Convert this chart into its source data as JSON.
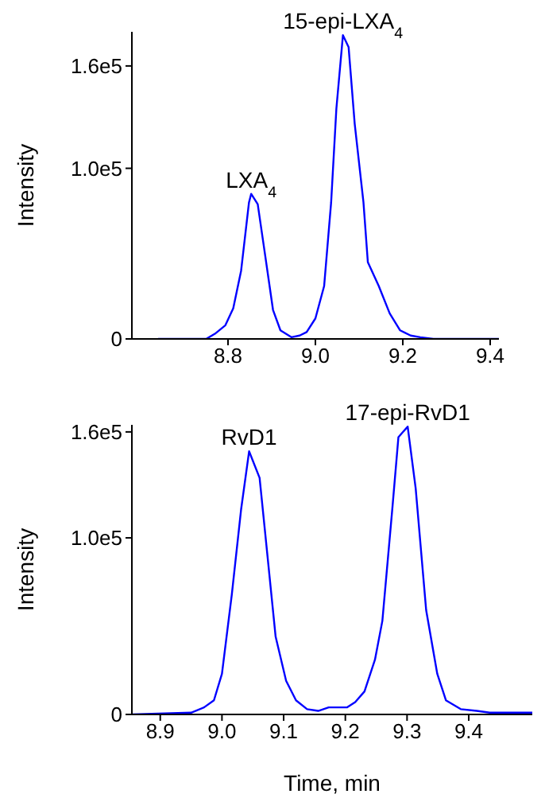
{
  "chart_data": [
    {
      "type": "line",
      "ylabel": "Intensity",
      "xlim": [
        8.58,
        9.42
      ],
      "ylim": [
        0,
        180000
      ],
      "xticks": [
        8.8,
        {
          "value": 9,
          "label": "9.0"
        },
        9.2,
        9.4
      ],
      "yticks": [
        {
          "value": 0,
          "label": "0"
        },
        {
          "value": 100000,
          "label": "1.0e5"
        },
        {
          "value": 160000,
          "label": "1.6e5"
        }
      ],
      "marker": "none",
      "line_style": "solid",
      "annotations": [
        {
          "text": "LXA$_{4}$",
          "x": 8.853,
          "y": 85000
        },
        {
          "text": "15-epi-LXA$_{4}$",
          "x": 9.063,
          "y": 178000
        }
      ],
      "series": [
        {
          "color": "#0000ff",
          "x": [
            8.64,
            8.75,
            8.77,
            8.794,
            8.812,
            8.83,
            8.848,
            8.853,
            8.868,
            8.885,
            8.903,
            8.92,
            8.945,
            8.964,
            8.98,
            9.0,
            9.02,
            9.036,
            9.048,
            9.063,
            9.076,
            9.09,
            9.11,
            9.12,
            9.145,
            9.17,
            9.194,
            9.218,
            9.24,
            9.27,
            9.42
          ],
          "values": [
            0,
            0,
            3000,
            8000,
            18000,
            40000,
            80000,
            85000,
            79000,
            49000,
            17000,
            5000,
            1000,
            2000,
            4000,
            12000,
            31000,
            80000,
            135000,
            178000,
            171000,
            126000,
            80000,
            45000,
            31000,
            15000,
            5000,
            2000,
            1000,
            0,
            0
          ]
        }
      ]
    },
    {
      "type": "line",
      "xlabel": "Time, min",
      "ylabel": "Intensity",
      "xlim": [
        8.854,
        9.503
      ],
      "ylim": [
        0,
        164000
      ],
      "xticks": [
        8.9,
        {
          "value": 9,
          "label": "9.0"
        },
        9.1,
        9.2,
        9.3,
        9.4
      ],
      "yticks": [
        {
          "value": 0,
          "label": "0"
        },
        {
          "value": 100000,
          "label": "1.0e5"
        },
        {
          "value": 160000,
          "label": "1.6e5"
        }
      ],
      "marker": "none",
      "line_style": "solid",
      "annotations": [
        {
          "text": "RvD1",
          "x": 9.044,
          "y": 149000
        },
        {
          "text": "17-epi-RvD1",
          "x": 9.301,
          "y": 163000
        }
      ],
      "series": [
        {
          "color": "#0000ff",
          "x": [
            8.854,
            8.95,
            8.971,
            8.987,
            9.0,
            9.016,
            9.031,
            9.044,
            9.061,
            9.074,
            9.087,
            9.104,
            9.12,
            9.138,
            9.156,
            9.173,
            9.203,
            9.216,
            9.231,
            9.248,
            9.26,
            9.276,
            9.286,
            9.301,
            9.314,
            9.331,
            9.349,
            9.363,
            9.387,
            9.413,
            9.434,
            9.503
          ],
          "values": [
            0,
            1000,
            4000,
            8000,
            23000,
            68000,
            116000,
            149000,
            134000,
            89000,
            44000,
            19000,
            8000,
            3000,
            2000,
            4000,
            4000,
            7000,
            13000,
            31000,
            53000,
            116000,
            157000,
            163000,
            128000,
            59000,
            23000,
            8000,
            3000,
            2000,
            1000,
            1000
          ]
        }
      ]
    }
  ]
}
